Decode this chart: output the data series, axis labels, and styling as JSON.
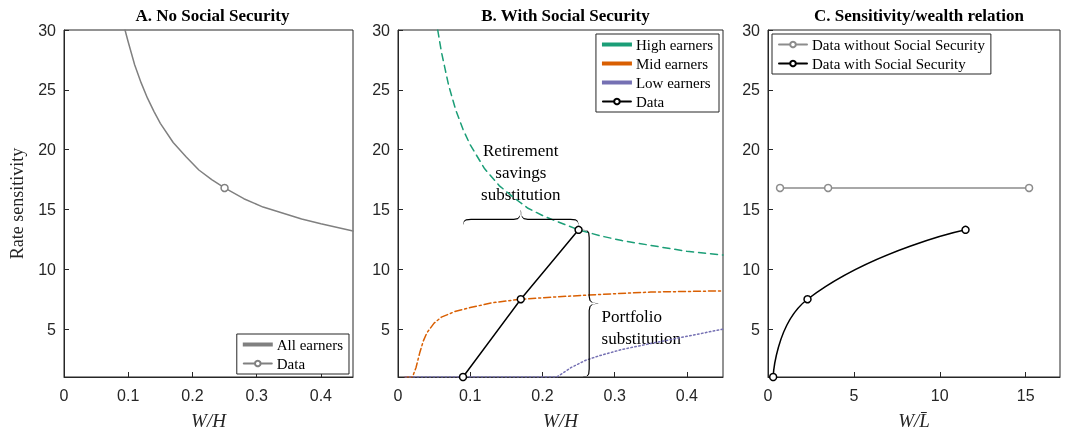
{
  "chart_data": [
    {
      "type": "line",
      "title": "A. No Social Security",
      "xlabel": "W/H",
      "ylabel": "Rate sensitivity",
      "xlim": [
        0,
        0.45
      ],
      "xticks": [
        0,
        0.1,
        0.2,
        0.3,
        0.4
      ],
      "ylim": [
        1,
        30
      ],
      "yticks": [
        5,
        10,
        15,
        20,
        25,
        30
      ],
      "grid": false,
      "legend": "bottom right",
      "series": [
        {
          "name": "All earners",
          "color": "#808080",
          "marker": "none",
          "line_style": "solid",
          "x": [
            0.095,
            0.1,
            0.11,
            0.12,
            0.13,
            0.14,
            0.15,
            0.17,
            0.19,
            0.21,
            0.23,
            0.25,
            0.28,
            0.31,
            0.34,
            0.37,
            0.4,
            0.45
          ],
          "values": [
            30.0,
            29.0,
            27.1,
            25.6,
            24.3,
            23.2,
            22.2,
            20.6,
            19.4,
            18.3,
            17.5,
            16.8,
            15.9,
            15.2,
            14.7,
            14.2,
            13.8,
            13.2
          ]
        },
        {
          "name": "Data",
          "color": "#808080",
          "marker": "circle",
          "line_style": "solid",
          "x": [
            0.25
          ],
          "values": [
            16.8
          ]
        }
      ]
    },
    {
      "type": "line",
      "title": "B. With Social Security",
      "xlabel": "W/H",
      "xlim": [
        0,
        0.45
      ],
      "xticks": [
        0,
        0.1,
        0.2,
        0.3,
        0.4
      ],
      "ylim": [
        1,
        30
      ],
      "yticks": [
        5,
        10,
        15,
        20,
        25,
        30
      ],
      "grid": false,
      "legend": "top right",
      "annotations": [
        "Retirement savings substitution",
        "Portfolio substitution"
      ],
      "series": [
        {
          "name": "High earners",
          "color": "#1b9e77",
          "marker": "none",
          "line_style": "dashed",
          "x": [
            0.055,
            0.06,
            0.07,
            0.08,
            0.09,
            0.1,
            0.12,
            0.14,
            0.16,
            0.18,
            0.2,
            0.22,
            0.25,
            0.28,
            0.31,
            0.35,
            0.4,
            0.45
          ],
          "values": [
            30.0,
            28.2,
            25.4,
            23.3,
            21.7,
            20.4,
            18.4,
            17.0,
            16.0,
            15.1,
            14.5,
            14.0,
            13.3,
            12.8,
            12.4,
            12.0,
            11.5,
            11.2
          ]
        },
        {
          "name": "Mid earners",
          "color": "#d95f02",
          "marker": "none",
          "line_style": "dashdot",
          "x": [
            0.01,
            0.02,
            0.025,
            0.03,
            0.035,
            0.04,
            0.05,
            0.06,
            0.08,
            0.1,
            0.13,
            0.17,
            0.22,
            0.28,
            0.35,
            0.45
          ],
          "values": [
            1,
            1,
            1.8,
            3.0,
            4.0,
            4.7,
            5.5,
            6.0,
            6.5,
            6.8,
            7.2,
            7.5,
            7.7,
            7.9,
            8.1,
            8.2
          ]
        },
        {
          "name": "Low earners",
          "color": "#7570b3",
          "marker": "none",
          "line_style": "dotted",
          "x": [
            0.01,
            0.22,
            0.24,
            0.26,
            0.28,
            0.31,
            0.35,
            0.4,
            0.45
          ],
          "values": [
            1,
            1,
            1.8,
            2.4,
            2.8,
            3.3,
            3.8,
            4.4,
            5.0
          ]
        },
        {
          "name": "Data",
          "color": "#000000",
          "marker": "circle",
          "line_style": "solid",
          "x": [
            0.09,
            0.17,
            0.25
          ],
          "values": [
            1,
            7.5,
            13.3
          ]
        }
      ]
    },
    {
      "type": "line",
      "title": "C. Sensitivity/wealth relation",
      "xlabel": "W/L̄",
      "xlim": [
        0,
        17
      ],
      "xticks": [
        0,
        5,
        10,
        15
      ],
      "ylim": [
        1,
        30
      ],
      "yticks": [
        5,
        10,
        15,
        20,
        25,
        30
      ],
      "grid": false,
      "legend": "top left",
      "series": [
        {
          "name": "Data without Social Security",
          "color": "#8c8c8c",
          "marker": "circle",
          "line_style": "solid",
          "x": [
            0.7,
            3.5,
            15.2
          ],
          "values": [
            16.8,
            16.8,
            16.8
          ]
        },
        {
          "name": "Data with Social Security",
          "color": "#000000",
          "marker": "circle",
          "line_style": "solid",
          "x": [
            0.3,
            2.3,
            11.5
          ],
          "values": [
            1,
            7.5,
            13.3
          ]
        }
      ]
    }
  ]
}
